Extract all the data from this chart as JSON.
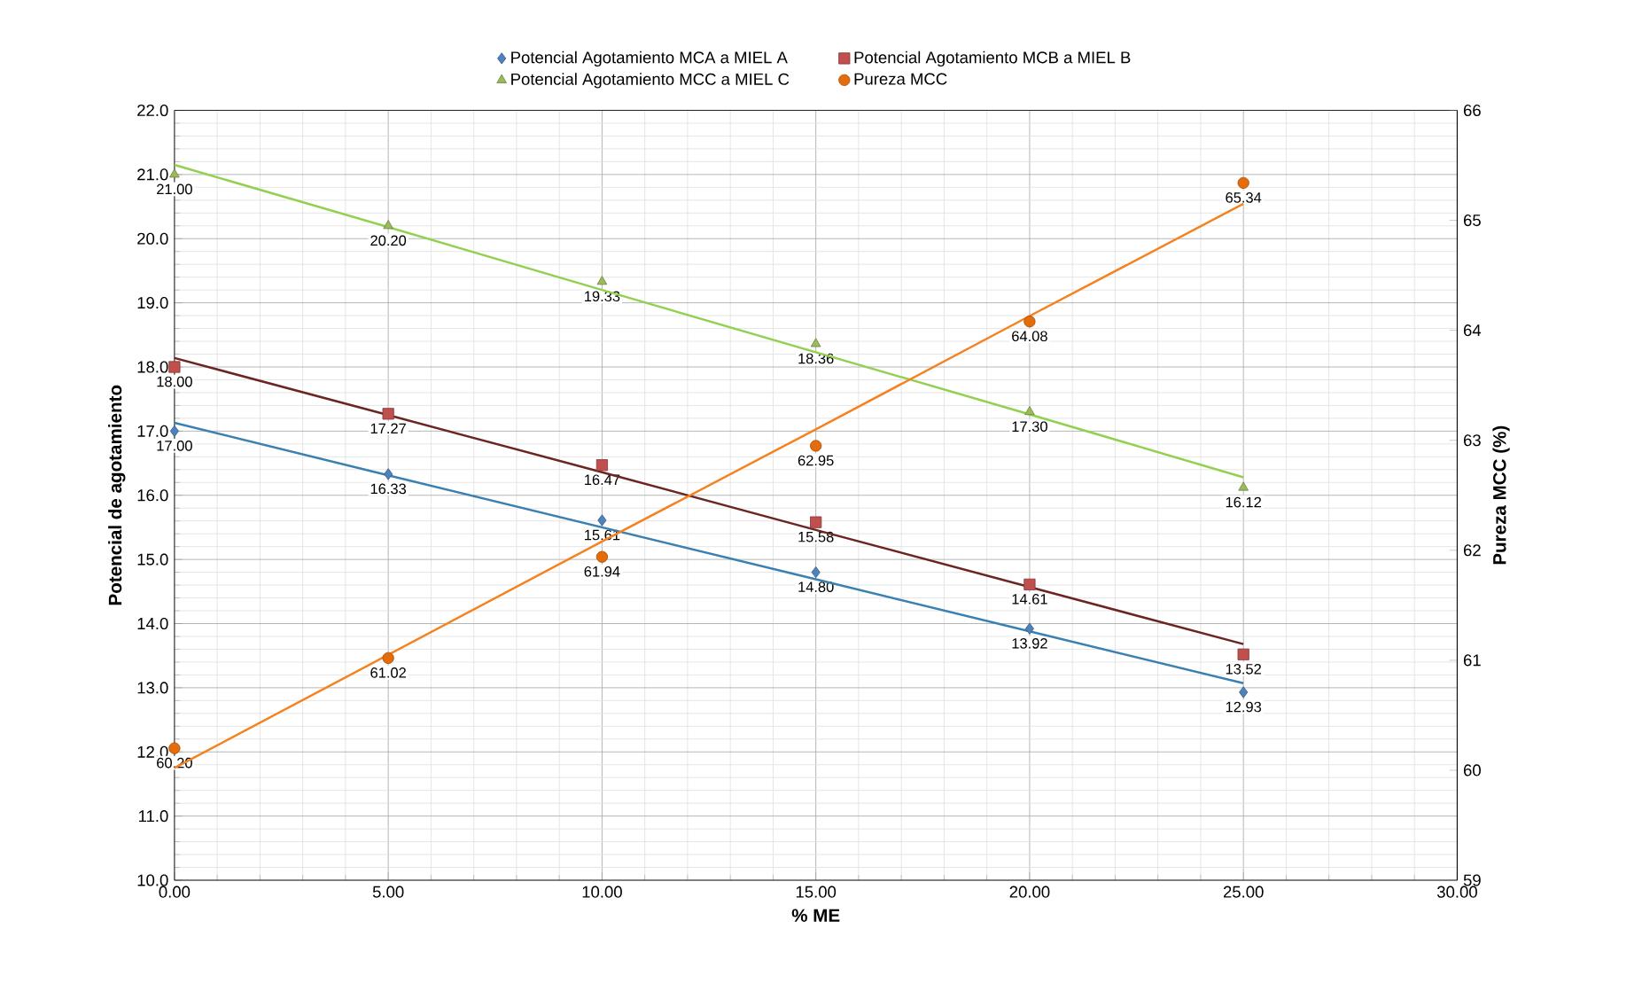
{
  "chart_data": {
    "type": "scatter",
    "xlabel": "% ME",
    "ylabel": "Potencial de agotamiento",
    "y2label": "Pureza MCC (%)",
    "x": [
      0,
      5,
      10,
      15,
      20,
      25
    ],
    "series": [
      {
        "name": "Potencial Agotamiento MCA a MIEL A",
        "color": "#4f81bd",
        "marker": "diamond",
        "values": [
          17.0,
          16.33,
          15.61,
          14.8,
          13.92,
          12.93
        ],
        "value_labels": [
          "17.00",
          "16.33",
          "15.61",
          "14.80",
          "13.92",
          "12.93"
        ]
      },
      {
        "name": "Potencial Agotamiento MCB a MIEL B",
        "color": "#c0504d",
        "marker": "square",
        "values": [
          18.0,
          17.27,
          16.47,
          15.58,
          14.61,
          13.52
        ],
        "value_labels": [
          "18.00",
          "17.27",
          "16.47",
          "15.58",
          "14.61",
          "13.52"
        ]
      },
      {
        "name": "Potencial Agotamiento MCC a MIEL C",
        "color": "#9bbb59",
        "marker": "triangle",
        "values": [
          21.0,
          20.2,
          19.33,
          18.36,
          17.3,
          16.12
        ],
        "value_labels": [
          "21.00",
          "20.20",
          "19.33",
          "18.36",
          "17.30",
          "16.12"
        ]
      },
      {
        "name": "Pureza MCC",
        "color": "#e46c0a",
        "marker": "circle",
        "axis": "y2",
        "values": [
          60.2,
          61.02,
          61.94,
          62.95,
          64.08,
          65.34
        ],
        "value_labels": [
          "60.20",
          "61.02",
          "61.94",
          "62.95",
          "64.08",
          "65.34"
        ]
      },
      {
        "type": "line",
        "color": "#3a80b0",
        "marker": "none",
        "values": [
          17.13,
          16.31,
          15.5,
          14.69,
          13.88,
          13.07
        ]
      },
      {
        "type": "line",
        "color": "#6b2522",
        "marker": "none",
        "values": [
          18.14,
          17.25,
          16.36,
          15.46,
          14.57,
          13.68
        ]
      },
      {
        "type": "line",
        "color": "#92d050",
        "marker": "none",
        "values": [
          21.15,
          20.18,
          19.2,
          18.23,
          17.26,
          16.28
        ]
      },
      {
        "type": "line",
        "color": "#f5821f",
        "marker": "none",
        "axis": "y2",
        "values": [
          60.02,
          61.05,
          62.08,
          63.1,
          64.13,
          65.15
        ]
      }
    ],
    "xlim": [
      0,
      30
    ],
    "xticks": [
      {
        "value": 0,
        "label": "0.00"
      },
      {
        "value": 5,
        "label": "5.00"
      },
      {
        "value": 10,
        "label": "10.00"
      },
      {
        "value": 15,
        "label": "15.00"
      },
      {
        "value": 20,
        "label": "20.00"
      },
      {
        "value": 25,
        "label": "25.00"
      },
      {
        "value": 30,
        "label": "30.00"
      }
    ],
    "ylim": [
      10,
      22
    ],
    "yticks": [
      {
        "value": 10,
        "label": "10.0"
      },
      {
        "value": 11,
        "label": "11.0"
      },
      {
        "value": 12,
        "label": "12.0"
      },
      {
        "value": 13,
        "label": "13.0"
      },
      {
        "value": 14,
        "label": "14.0"
      },
      {
        "value": 15,
        "label": "15.0"
      },
      {
        "value": 16,
        "label": "16.0"
      },
      {
        "value": 17,
        "label": "17.0"
      },
      {
        "value": 18,
        "label": "18.0"
      },
      {
        "value": 19,
        "label": "19.0"
      },
      {
        "value": 20,
        "label": "20.0"
      },
      {
        "value": 21,
        "label": "21.0"
      },
      {
        "value": 22,
        "label": "22.0"
      }
    ],
    "y2lim": [
      59,
      66
    ],
    "y2ticks": [
      59,
      60,
      61,
      62,
      63,
      64,
      65,
      66
    ],
    "grid": true,
    "legend": "top"
  }
}
